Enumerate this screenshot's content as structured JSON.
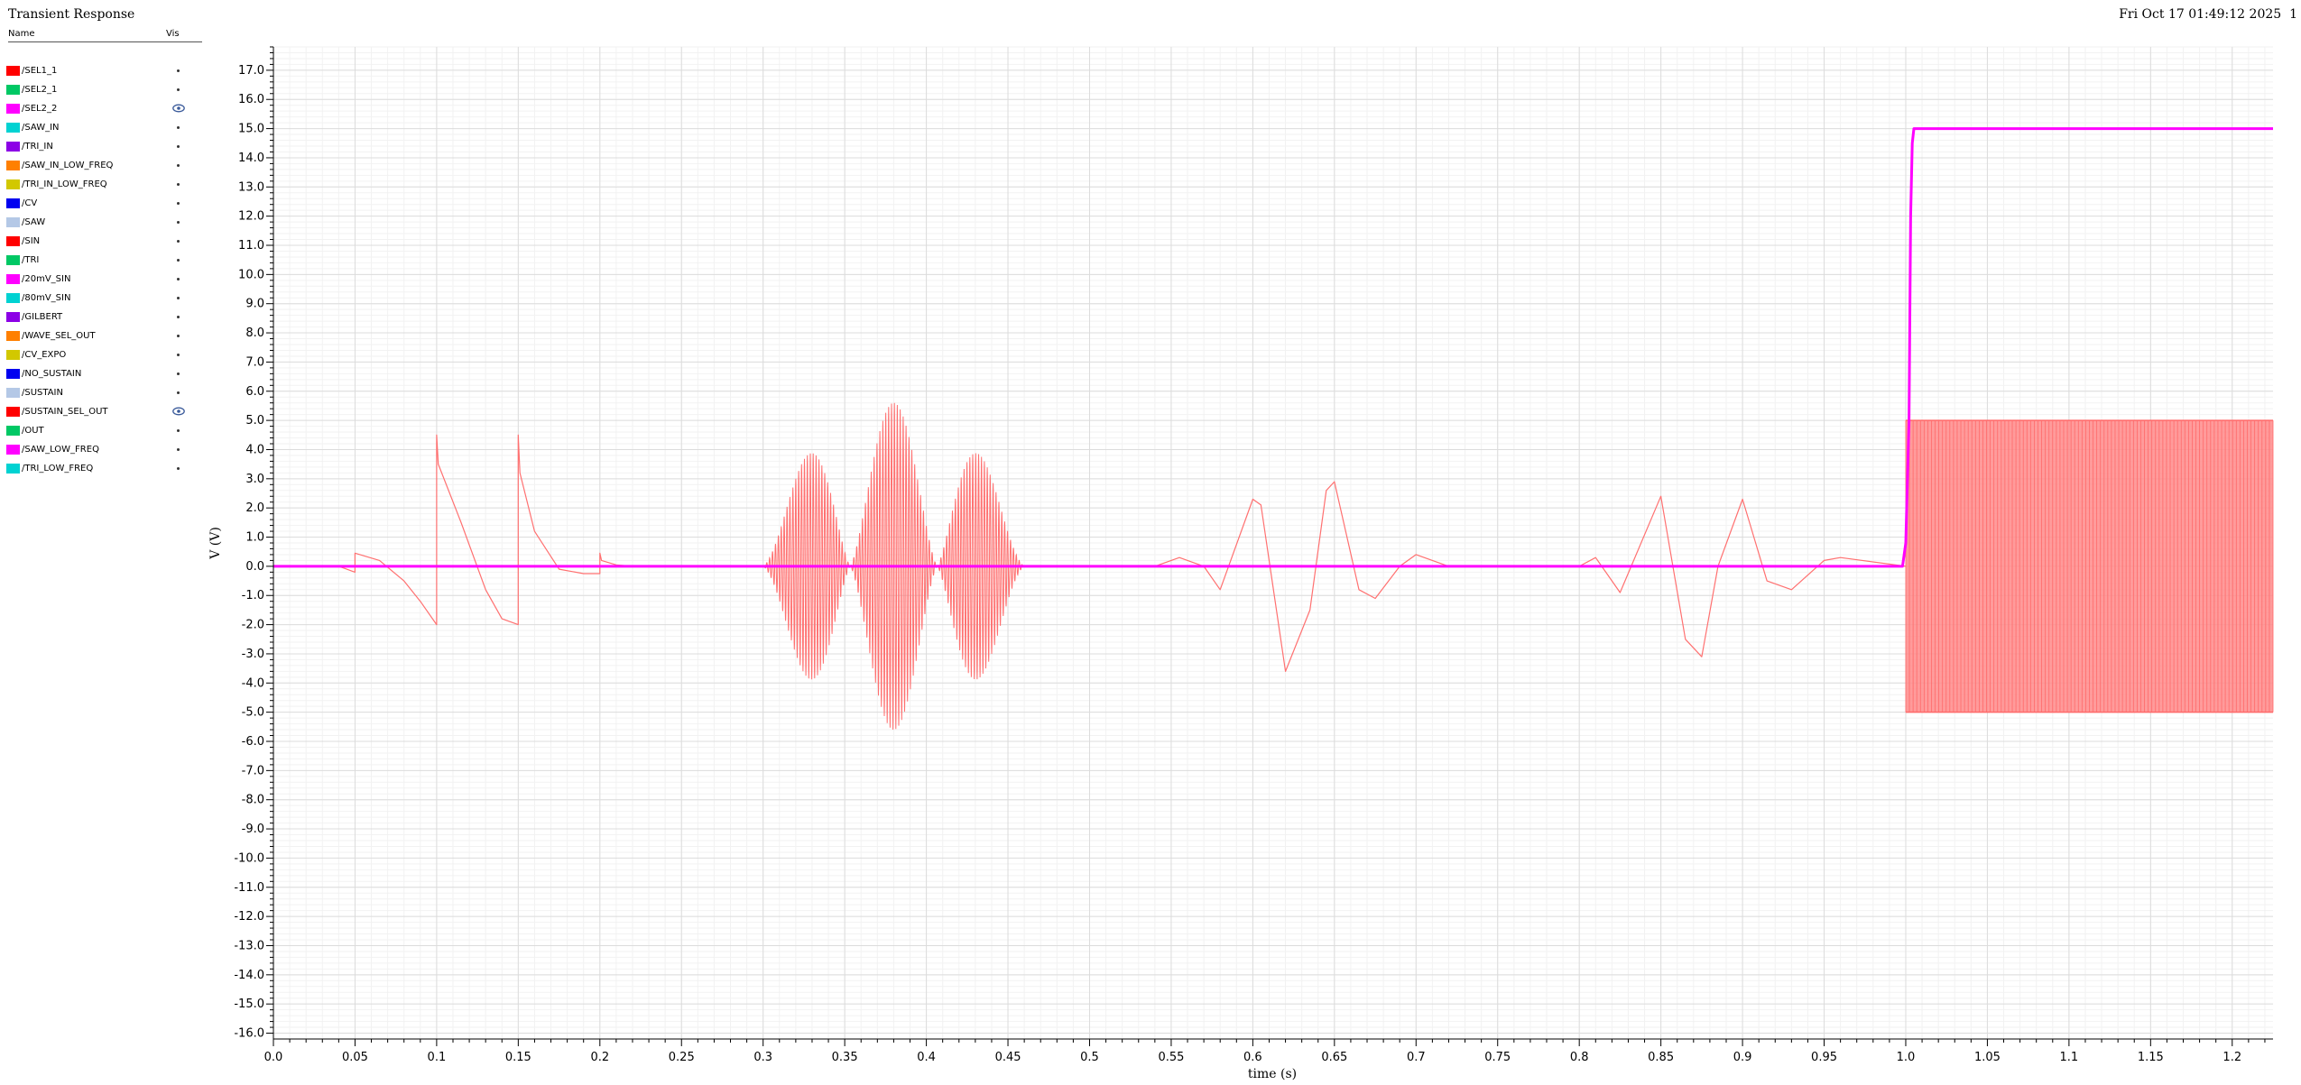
{
  "window": {
    "title": "Transient Response",
    "datetime": "Fri Oct 17 01:49:12 2025",
    "page_number": "1"
  },
  "legend": {
    "header_name": "Name",
    "header_vis": "Vis",
    "items": [
      {
        "name": "/SEL1_1",
        "color": "#ff0000",
        "visible": false
      },
      {
        "name": "/SEL2_1",
        "color": "#00c864",
        "visible": false
      },
      {
        "name": "/SEL2_2",
        "color": "#ff00ff",
        "visible": true
      },
      {
        "name": "/SAW_IN",
        "color": "#00d2d2",
        "visible": false
      },
      {
        "name": "/TRI_IN",
        "color": "#8c00e6",
        "visible": false
      },
      {
        "name": "/SAW_IN_LOW_FREQ",
        "color": "#ff8000",
        "visible": false
      },
      {
        "name": "/TRI_IN_LOW_FREQ",
        "color": "#d2c800",
        "visible": false
      },
      {
        "name": "/CV",
        "color": "#0000f0",
        "visible": false
      },
      {
        "name": "/SAW",
        "color": "#b4c8e6",
        "visible": false
      },
      {
        "name": "/SIN",
        "color": "#ff0000",
        "visible": false
      },
      {
        "name": "/TRI",
        "color": "#00c864",
        "visible": false
      },
      {
        "name": "/20mV_SIN",
        "color": "#ff00ff",
        "visible": false
      },
      {
        "name": "/80mV_SIN",
        "color": "#00d2d2",
        "visible": false
      },
      {
        "name": "/GILBERT",
        "color": "#8c00e6",
        "visible": false
      },
      {
        "name": "/WAVE_SEL_OUT",
        "color": "#ff8000",
        "visible": false
      },
      {
        "name": "/CV_EXPO",
        "color": "#d2c800",
        "visible": false
      },
      {
        "name": "/NO_SUSTAIN",
        "color": "#0000f0",
        "visible": false
      },
      {
        "name": "/SUSTAIN",
        "color": "#b4c8e6",
        "visible": false
      },
      {
        "name": "/SUSTAIN_SEL_OUT",
        "color": "#ff0000",
        "visible": true
      },
      {
        "name": "/OUT",
        "color": "#00c864",
        "visible": false
      },
      {
        "name": "/SAW_LOW_FREQ",
        "color": "#ff00ff",
        "visible": false
      },
      {
        "name": "/TRI_LOW_FREQ",
        "color": "#00d2d2",
        "visible": false
      }
    ]
  },
  "chart_data": {
    "type": "line",
    "xlabel": "time (s)",
    "ylabel": "V (V)",
    "xlim": [
      0.0,
      1.225
    ],
    "ylim": [
      -16.2,
      17.8
    ],
    "x_ticks": [
      "0.0",
      "0.05",
      "0.1",
      "0.15",
      "0.2",
      "0.25",
      "0.3",
      "0.35",
      "0.4",
      "0.45",
      "0.5",
      "0.55",
      "0.6",
      "0.65",
      "0.7",
      "0.75",
      "0.8",
      "0.85",
      "0.9",
      "0.95",
      "1.0",
      "1.05",
      "1.1",
      "1.15",
      "1.2"
    ],
    "y_ticks": [
      "17.0",
      "16.0",
      "15.0",
      "14.0",
      "13.0",
      "12.0",
      "11.0",
      "10.0",
      "9.0",
      "8.0",
      "7.0",
      "6.0",
      "5.0",
      "4.0",
      "3.0",
      "2.0",
      "1.0",
      "0.0",
      "-1.0",
      "-2.0",
      "-3.0",
      "-4.0",
      "-5.0",
      "-6.0",
      "-7.0",
      "-8.0",
      "-9.0",
      "-10.0",
      "-11.0",
      "-12.0",
      "-13.0",
      "-14.0",
      "-15.0",
      "-16.0"
    ],
    "grid": true,
    "series": [
      {
        "name": "/SUSTAIN_SEL_OUT",
        "color": "#ff7070",
        "segments": [
          {
            "kind": "points",
            "x": [
              0.0,
              0.04,
              0.05,
              0.05,
              0.065,
              0.08,
              0.09,
              0.1,
              0.1,
              0.101,
              0.115,
              0.13,
              0.14,
              0.15,
              0.15,
              0.151,
              0.16,
              0.175,
              0.19,
              0.2,
              0.2,
              0.201,
              0.21,
              0.22,
              0.3
            ],
            "y": [
              0.0,
              0.0,
              -0.2,
              0.45,
              0.2,
              -0.5,
              -1.2,
              -2.0,
              4.5,
              3.5,
              1.5,
              -0.8,
              -1.8,
              -2.0,
              4.5,
              3.2,
              1.2,
              -0.1,
              -0.25,
              -0.25,
              0.45,
              0.2,
              0.05,
              0.0,
              0.0
            ]
          },
          {
            "kind": "burst",
            "x_start": 0.3,
            "x_end": 0.46,
            "cycles": 90,
            "amplitude_peak": 5.6,
            "envelope_lobes": 3
          },
          {
            "kind": "points",
            "x": [
              0.46,
              0.54,
              0.555,
              0.57,
              0.58,
              0.6,
              0.605,
              0.62,
              0.635,
              0.645,
              0.65,
              0.665,
              0.675,
              0.69,
              0.7,
              0.72,
              0.8,
              0.81,
              0.825,
              0.85,
              0.865,
              0.875,
              0.885,
              0.9,
              0.915,
              0.93,
              0.95,
              0.96,
              1.0
            ],
            "y": [
              0.0,
              0.0,
              0.3,
              0.0,
              -0.8,
              2.3,
              2.1,
              -3.6,
              -1.5,
              2.6,
              2.9,
              -0.8,
              -1.1,
              0.0,
              0.4,
              0.0,
              0.0,
              0.3,
              -0.9,
              2.4,
              -2.5,
              -3.1,
              0.0,
              2.3,
              -0.5,
              -0.8,
              0.2,
              0.3,
              0.0
            ]
          },
          {
            "kind": "fill_band",
            "x_start": 1.0,
            "x_end": 1.225,
            "y_low": -5.0,
            "y_high": 5.0,
            "cycles": 100
          }
        ]
      },
      {
        "name": "/SEL2_2",
        "color": "#ff00ff",
        "segments": [
          {
            "kind": "points",
            "x": [
              0.0,
              0.998,
              1.0,
              1.002,
              1.003,
              1.004,
              1.005,
              1.225
            ],
            "y": [
              0.0,
              0.0,
              0.8,
              5.0,
              12.0,
              14.5,
              15.0,
              15.0
            ]
          }
        ]
      }
    ]
  }
}
